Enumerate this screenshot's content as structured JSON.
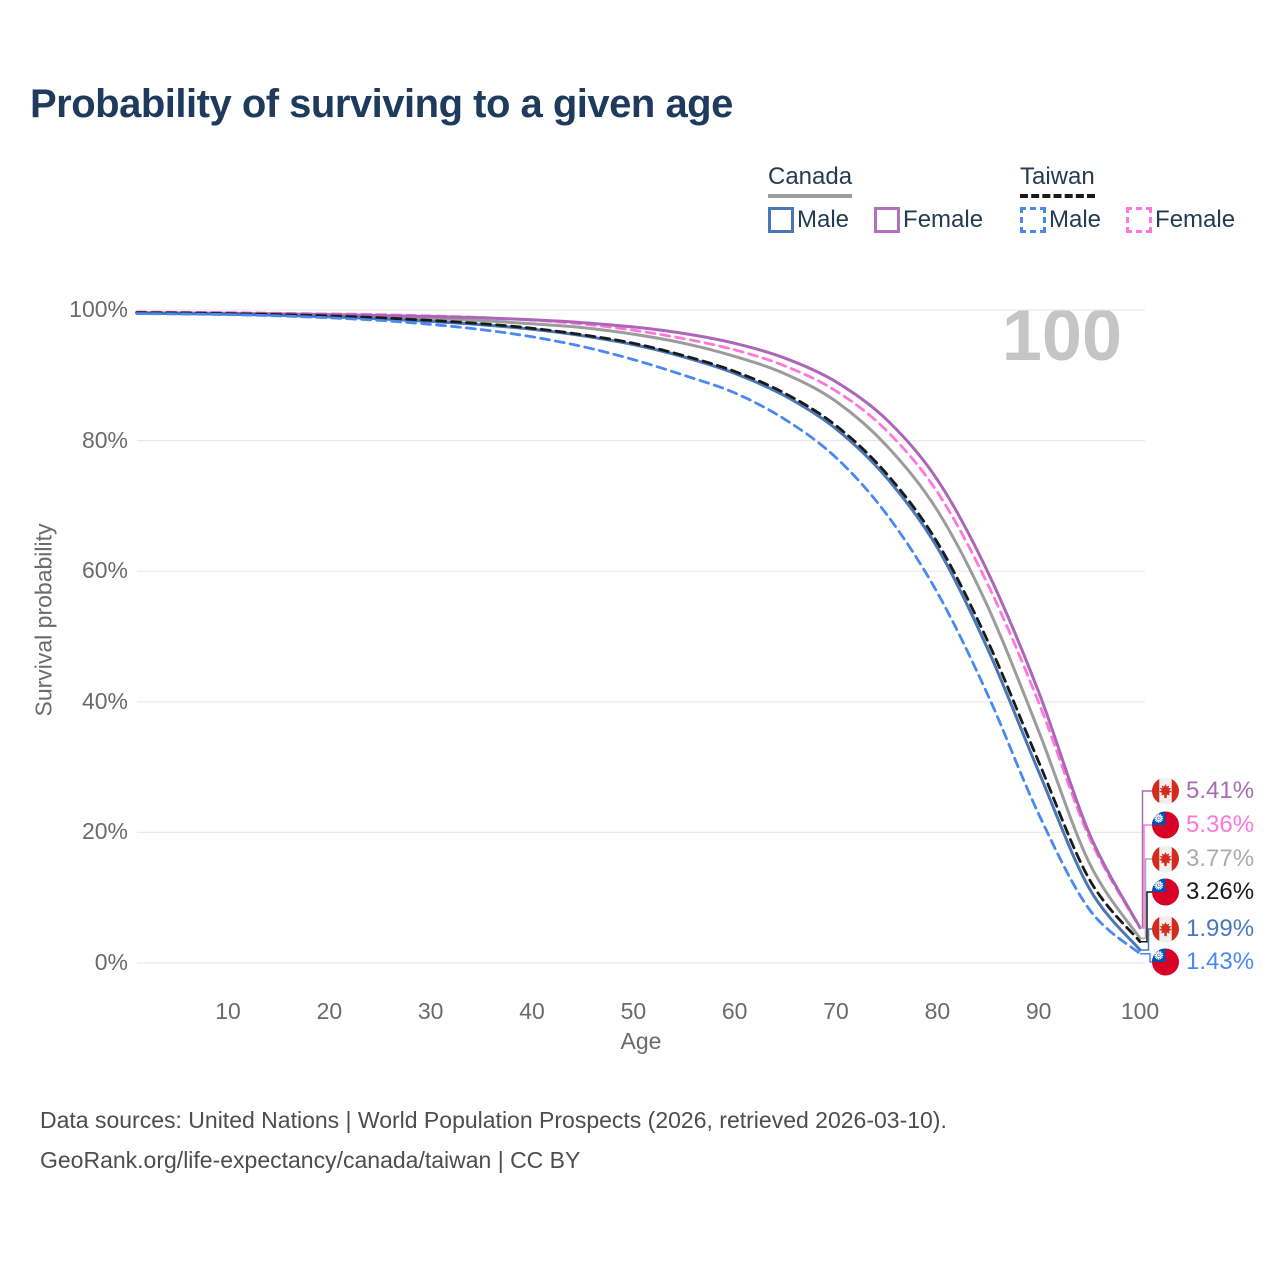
{
  "title": "Probability of surviving to a given age",
  "age_indicator": "100",
  "legend": {
    "groups": [
      {
        "name": "Canada",
        "underline_style": "solid",
        "underline_color": "#9e9e9e",
        "items": [
          {
            "label": "Male",
            "color": "#4a77b6",
            "dash": false
          },
          {
            "label": "Female",
            "color": "#b072bd",
            "dash": false
          }
        ]
      },
      {
        "name": "Taiwan",
        "underline_style": "dashed",
        "underline_color": "#1a1a1a",
        "items": [
          {
            "label": "Male",
            "color": "#4a89ef",
            "dash": true
          },
          {
            "label": "Female",
            "color": "#ff77dd",
            "dash": true
          }
        ]
      }
    ]
  },
  "chart_data": {
    "type": "line",
    "title": "Probability of surviving to a given age",
    "xlabel": "Age",
    "ylabel": "Survival probability",
    "xlim": [
      0,
      100
    ],
    "ylim": [
      0,
      100
    ],
    "grid": "horizontal",
    "xticks": [
      10,
      20,
      30,
      40,
      50,
      60,
      70,
      80,
      90,
      100
    ],
    "yticks": [
      0,
      20,
      40,
      60,
      80,
      100
    ],
    "ytick_labels": [
      "0%",
      "20%",
      "40%",
      "60%",
      "80%",
      "100%"
    ],
    "x": [
      1,
      5,
      10,
      15,
      20,
      25,
      30,
      35,
      40,
      45,
      50,
      55,
      60,
      65,
      70,
      75,
      80,
      85,
      90,
      95,
      100
    ],
    "series": [
      {
        "name": "Canada Female",
        "country": "Canada",
        "sex": "Female",
        "style": "solid",
        "color": "#ab66b8",
        "label_color": "#a76cb3",
        "end_label": "5.41%",
        "flag": "canada",
        "values": [
          99.6,
          99.55,
          99.5,
          99.4,
          99.3,
          99.15,
          99.0,
          98.8,
          98.5,
          98.05,
          97.4,
          96.4,
          94.9,
          92.6,
          89.0,
          83.2,
          74.0,
          59.8,
          41.5,
          19.8,
          5.41
        ]
      },
      {
        "name": "Taiwan Female",
        "country": "Taiwan",
        "sex": "Female",
        "style": "dashed",
        "color": "#ff77dd",
        "label_color": "#ff77dd",
        "end_label": "5.36%",
        "flag": "taiwan",
        "values": [
          99.7,
          99.65,
          99.6,
          99.5,
          99.4,
          99.3,
          99.1,
          98.85,
          98.45,
          97.85,
          96.9,
          95.6,
          93.9,
          91.4,
          87.6,
          81.5,
          72.1,
          57.9,
          39.9,
          19.2,
          5.36
        ]
      },
      {
        "name": "Canada Both sexes",
        "country": "Canada",
        "sex": "Both",
        "style": "solid",
        "color": "#9c9c9c",
        "label_color": "#ababab",
        "end_label": "3.77%",
        "flag": "canada",
        "values": [
          99.55,
          99.5,
          99.45,
          99.35,
          99.15,
          98.95,
          98.7,
          98.35,
          97.9,
          97.3,
          96.3,
          94.9,
          92.9,
          90.2,
          86.0,
          79.2,
          69.3,
          54.5,
          35.5,
          15.3,
          3.77
        ]
      },
      {
        "name": "Taiwan Both sexes",
        "country": "Taiwan",
        "sex": "Both",
        "style": "dashed",
        "color": "#1a1a1a",
        "label_color": "#1a1a1a",
        "end_label": "3.26%",
        "flag": "taiwan",
        "values": [
          99.6,
          99.55,
          99.45,
          99.3,
          99.1,
          98.8,
          98.4,
          97.9,
          97.2,
          96.2,
          94.9,
          93.0,
          90.6,
          87.2,
          82.3,
          74.9,
          64.4,
          49.2,
          30.8,
          12.8,
          3.26
        ]
      },
      {
        "name": "Canada Male",
        "country": "Canada",
        "sex": "Male",
        "style": "solid",
        "color": "#4a77b6",
        "label_color": "#4a79ba",
        "end_label": "1.99%",
        "flag": "canada",
        "values": [
          99.5,
          99.45,
          99.35,
          99.2,
          98.95,
          98.65,
          98.25,
          97.75,
          97.05,
          96.05,
          94.7,
          92.8,
          90.3,
          86.8,
          81.8,
          74.3,
          63.6,
          48.0,
          29.3,
          11.4,
          1.99
        ]
      },
      {
        "name": "Taiwan Male",
        "country": "Taiwan",
        "sex": "Male",
        "style": "dashed",
        "color": "#4a89ef",
        "label_color": "#4a89ef",
        "end_label": "1.43%",
        "flag": "taiwan",
        "values": [
          99.45,
          99.4,
          99.3,
          99.1,
          98.8,
          98.4,
          97.8,
          97.0,
          95.9,
          94.4,
          92.4,
          90.0,
          87.3,
          83.2,
          77.4,
          68.7,
          56.7,
          41.0,
          22.8,
          8.2,
          1.43
        ]
      }
    ],
    "legend_position": "top-right"
  },
  "source": {
    "line1": "Data sources: United Nations | World Population Prospects (2026, retrieved 2026-03-10).",
    "line2": "GeoRank.org/life-expectancy/canada/taiwan | CC BY"
  }
}
